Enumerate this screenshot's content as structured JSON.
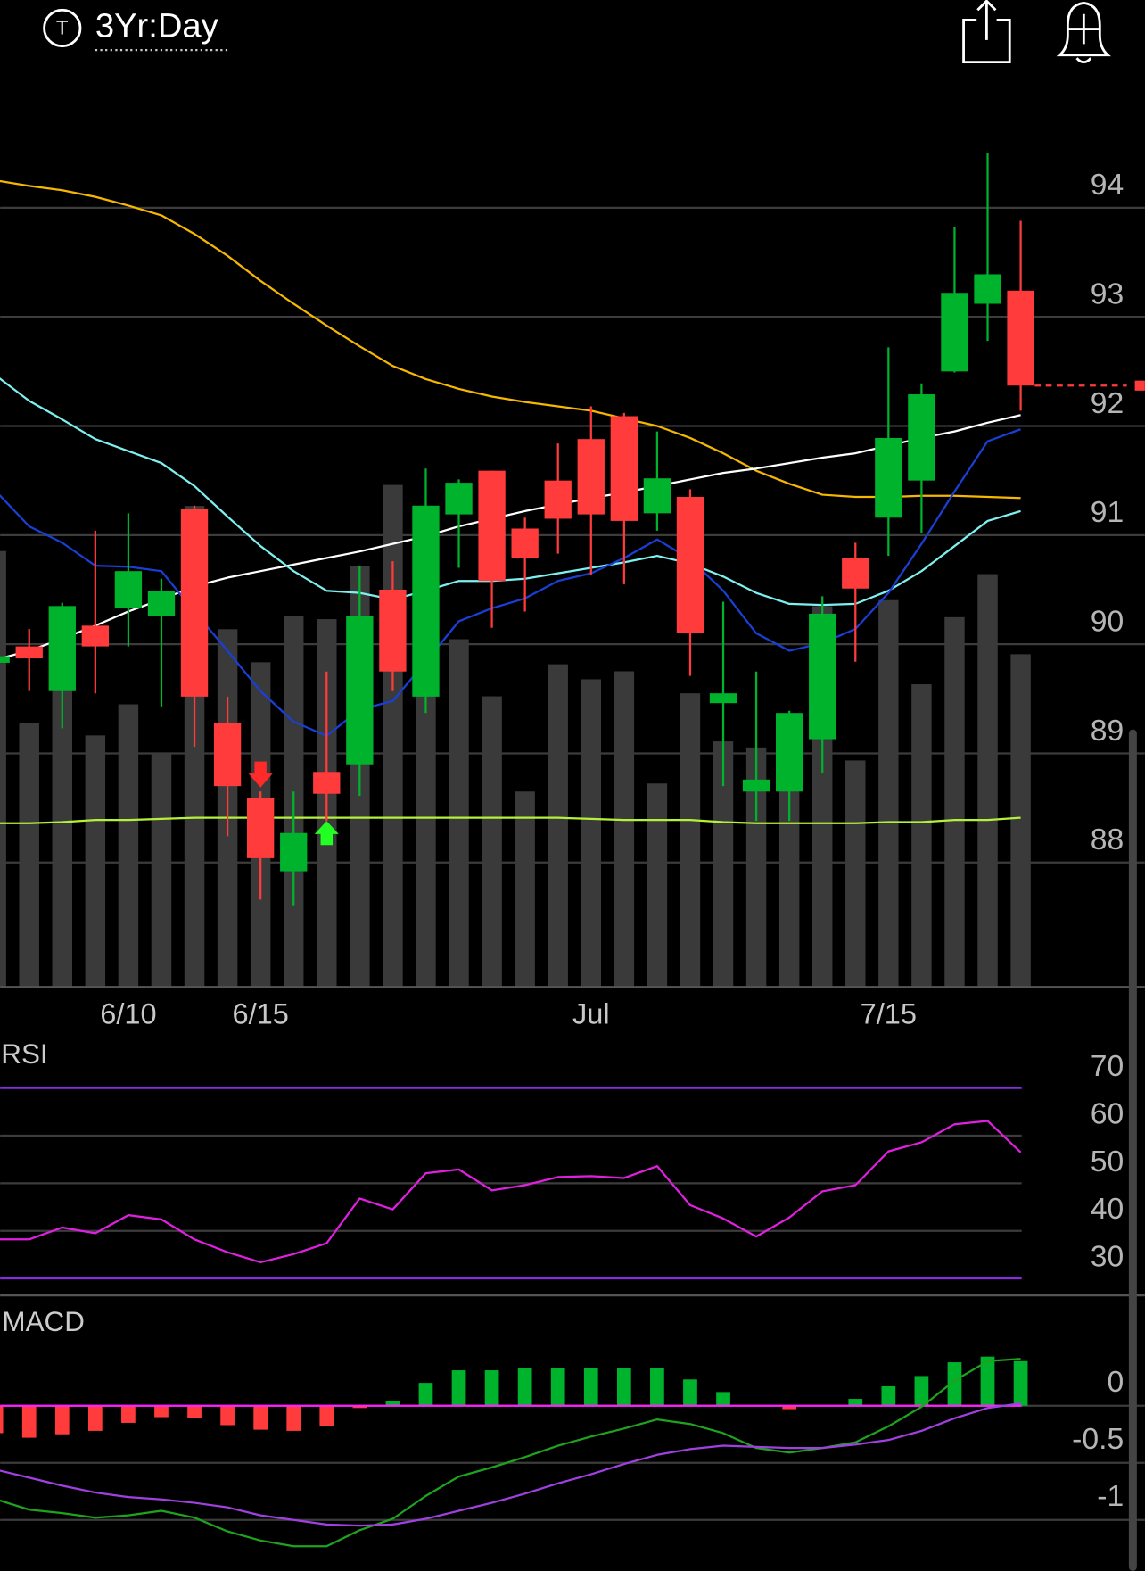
{
  "header": {
    "icon_letter": "T",
    "title": "3Yr:Day"
  },
  "chart_data": [
    {
      "type": "candlestick",
      "categories": [
        null,
        null,
        null,
        null,
        "6/10",
        null,
        null,
        null,
        "6/15",
        null,
        null,
        null,
        null,
        null,
        null,
        null,
        null,
        null,
        "Jul",
        null,
        null,
        null,
        null,
        null,
        null,
        null,
        null,
        "7/15",
        null,
        null,
        null,
        null
      ],
      "open": [
        89.83,
        89.98,
        89.57,
        90.17,
        90.33,
        90.26,
        91.24,
        89.28,
        88.59,
        87.92,
        88.83,
        88.9,
        90.5,
        89.52,
        91.19,
        91.59,
        91.06,
        91.5,
        91.88,
        92.09,
        91.2,
        91.35,
        89.46,
        88.65,
        88.65,
        89.13,
        90.79,
        91.16,
        91.5,
        92.5,
        93.12,
        93.24
      ],
      "high": [
        89.9,
        90.14,
        90.38,
        91.04,
        91.2,
        90.6,
        91.27,
        89.52,
        88.65,
        88.65,
        89.75,
        90.72,
        90.76,
        91.61,
        91.51,
        91.59,
        91.16,
        91.84,
        92.18,
        92.12,
        91.95,
        91.42,
        90.39,
        89.75,
        89.39,
        90.44,
        90.93,
        92.72,
        92.39,
        93.82,
        94.5,
        93.88
      ],
      "low": [
        89.8,
        89.57,
        89.23,
        89.55,
        89.98,
        89.43,
        89.06,
        88.24,
        87.66,
        87.6,
        88.38,
        88.61,
        89.57,
        89.37,
        90.7,
        90.15,
        90.3,
        90.83,
        90.64,
        90.55,
        91.04,
        89.71,
        88.7,
        88.38,
        88.38,
        88.82,
        89.84,
        90.81,
        91.02,
        92.49,
        92.78,
        92.14
      ],
      "close": [
        89.89,
        89.87,
        90.35,
        89.98,
        90.67,
        90.49,
        89.52,
        88.7,
        88.04,
        88.27,
        88.63,
        90.26,
        89.75,
        91.27,
        91.48,
        90.58,
        90.79,
        91.15,
        91.19,
        91.13,
        91.52,
        90.1,
        89.55,
        88.76,
        89.37,
        90.28,
        90.51,
        91.89,
        92.29,
        93.22,
        93.39,
        92.37
      ],
      "up_color": "#00b32c",
      "down_color": "#ff3b3b",
      "volume": [
        435,
        263,
        380,
        251,
        282,
        233,
        480,
        357,
        324,
        370,
        367,
        420,
        501,
        480,
        347,
        290,
        195,
        322,
        307,
        315,
        203,
        293,
        245,
        239,
        273,
        380,
        226,
        386,
        302,
        369,
        412,
        332
      ],
      "volume_color": "#3a3a3a",
      "vlim": [
        0,
        855
      ],
      "overlays": [
        {
          "color": "#f5b700",
          "values": [
            94.25,
            94.2,
            94.16,
            94.1,
            94.02,
            93.93,
            93.76,
            93.56,
            93.33,
            93.12,
            92.92,
            92.73,
            92.55,
            92.43,
            92.34,
            92.27,
            92.22,
            92.18,
            92.14,
            92.07,
            92.0,
            91.89,
            91.75,
            91.59,
            91.47,
            91.37,
            91.35,
            91.35,
            91.36,
            91.36,
            91.35,
            91.34
          ]
        },
        {
          "color": "#ffffff",
          "values": [
            89.86,
            89.94,
            90.05,
            90.17,
            90.3,
            90.41,
            90.53,
            90.61,
            90.67,
            90.73,
            90.79,
            90.85,
            90.92,
            90.99,
            91.08,
            91.15,
            91.22,
            91.28,
            91.34,
            91.39,
            91.45,
            91.51,
            91.57,
            91.61,
            91.66,
            91.71,
            91.75,
            91.82,
            91.89,
            91.95,
            92.03,
            92.1
          ]
        },
        {
          "color": "#7ff0f0",
          "values": [
            92.46,
            92.23,
            92.06,
            91.88,
            91.77,
            91.66,
            91.45,
            91.17,
            90.9,
            90.67,
            90.49,
            90.47,
            90.41,
            90.49,
            90.58,
            90.58,
            90.6,
            90.65,
            90.7,
            90.75,
            90.81,
            90.74,
            90.62,
            90.47,
            90.37,
            90.36,
            90.37,
            90.49,
            90.67,
            90.9,
            91.13,
            91.22
          ]
        },
        {
          "color": "#1a3fd6",
          "values": [
            91.4,
            91.08,
            90.93,
            90.72,
            90.71,
            90.67,
            90.3,
            89.94,
            89.57,
            89.29,
            89.16,
            89.4,
            89.48,
            89.84,
            90.21,
            90.33,
            90.42,
            90.58,
            90.65,
            90.79,
            90.96,
            90.78,
            90.49,
            90.1,
            89.94,
            90.01,
            90.14,
            90.47,
            90.92,
            91.4,
            91.86,
            91.97
          ]
        },
        {
          "color": "#b5f03a",
          "values": [
            88.36,
            88.36,
            88.37,
            88.39,
            88.39,
            88.4,
            88.41,
            88.41,
            88.41,
            88.41,
            88.41,
            88.41,
            88.41,
            88.41,
            88.41,
            88.41,
            88.41,
            88.41,
            88.4,
            88.39,
            88.39,
            88.39,
            88.37,
            88.36,
            88.36,
            88.36,
            88.36,
            88.37,
            88.37,
            88.39,
            88.39,
            88.41
          ]
        }
      ],
      "signals": [
        {
          "index": 8,
          "direction": "down",
          "color": "#ff2a2a"
        },
        {
          "index": 10,
          "direction": "up",
          "color": "#22ff22"
        }
      ],
      "last_price_color": "#ff3b3b",
      "ylim": [
        86.86,
        94.71
      ],
      "yticks": [
        88,
        89,
        90,
        91,
        92,
        93,
        94
      ],
      "grid": true
    },
    {
      "type": "line",
      "title": "RSI",
      "series": [
        {
          "color": "#e020e0",
          "values": [
            38.2,
            38.2,
            40.7,
            39.5,
            43.3,
            42.4,
            38.2,
            35.5,
            33.4,
            35.1,
            37.4,
            46.8,
            44.5,
            52.1,
            52.9,
            48.5,
            49.6,
            51.3,
            51.5,
            51.1,
            53.6,
            45.4,
            42.6,
            38.8,
            42.8,
            48.3,
            49.6,
            56.7,
            58.6,
            62.4,
            63.1,
            56.5
          ]
        }
      ],
      "band_color": "#8a2be2",
      "ylim": [
        26.42,
        79.68
      ],
      "yticks": [
        30,
        40,
        50,
        60,
        70
      ],
      "grid": true
    },
    {
      "type": "macd",
      "title": "MACD",
      "histogram": [
        -0.24,
        -0.28,
        -0.25,
        -0.22,
        -0.15,
        -0.1,
        -0.11,
        -0.17,
        -0.21,
        -0.22,
        -0.18,
        -0.02,
        0.04,
        0.2,
        0.31,
        0.31,
        0.33,
        0.33,
        0.33,
        0.33,
        0.33,
        0.23,
        0.12,
        0,
        -0.03,
        0,
        0.06,
        0.17,
        0.26,
        0.38,
        0.43,
        0.39
      ],
      "up_color": "#00b32c",
      "down_color": "#ff3b3b",
      "series": [
        {
          "color": "#1fa31f",
          "values": [
            -0.82,
            -0.91,
            -0.94,
            -0.98,
            -0.96,
            -0.92,
            -0.98,
            -1.1,
            -1.18,
            -1.23,
            -1.23,
            -1.09,
            -0.99,
            -0.79,
            -0.62,
            -0.54,
            -0.45,
            -0.35,
            -0.27,
            -0.2,
            -0.12,
            -0.16,
            -0.24,
            -0.37,
            -0.41,
            -0.37,
            -0.32,
            -0.18,
            -0.01,
            0.22,
            0.39,
            0.41
          ]
        },
        {
          "color": "#a040e0",
          "values": [
            -0.56,
            -0.63,
            -0.7,
            -0.76,
            -0.8,
            -0.82,
            -0.85,
            -0.89,
            -0.96,
            -1.0,
            -1.04,
            -1.05,
            -1.04,
            -0.99,
            -0.92,
            -0.85,
            -0.77,
            -0.68,
            -0.6,
            -0.51,
            -0.43,
            -0.38,
            -0.35,
            -0.36,
            -0.37,
            -0.37,
            -0.34,
            -0.3,
            -0.22,
            -0.11,
            -0.02,
            0.02
          ]
        }
      ],
      "zero_color": "#ff22ff",
      "ylim": [
        -1.447,
        0.86
      ],
      "yticks": [
        -1,
        -0.5,
        0
      ],
      "grid": true
    }
  ]
}
